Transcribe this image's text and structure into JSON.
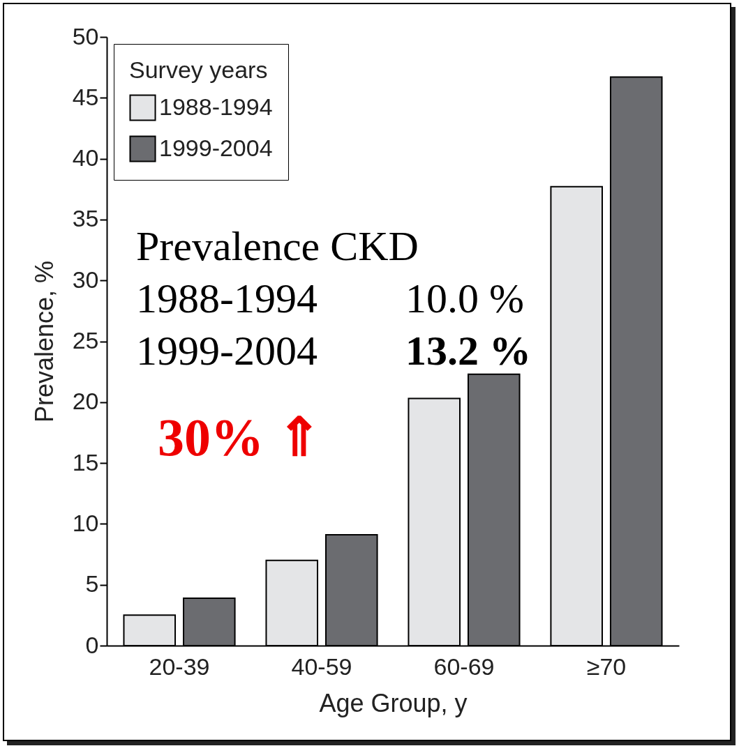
{
  "chart_data": {
    "type": "bar",
    "xlabel": "Age Group, y",
    "ylabel": "Prevalence, %",
    "legend_title": "Survey years",
    "categories": [
      "20-39",
      "40-59",
      "60-69",
      "≥70"
    ],
    "series": [
      {
        "name": "1988-1994",
        "color": "#e4e5e7",
        "values": [
          2.5,
          7.0,
          20.3,
          37.7
        ]
      },
      {
        "name": "1999-2004",
        "color": "#6b6c70",
        "values": [
          3.9,
          9.1,
          22.3,
          46.7
        ]
      }
    ],
    "ylim": [
      0,
      50
    ],
    "yticks": [
      0,
      5,
      10,
      15,
      20,
      25,
      30,
      35,
      40,
      45,
      50
    ],
    "grid": false,
    "legend": "top left",
    "annotations": [
      "Prevalence CKD",
      "1988-1994",
      "10.0 %",
      "1999-2004",
      "13.2 %",
      "30% ⇑"
    ]
  }
}
